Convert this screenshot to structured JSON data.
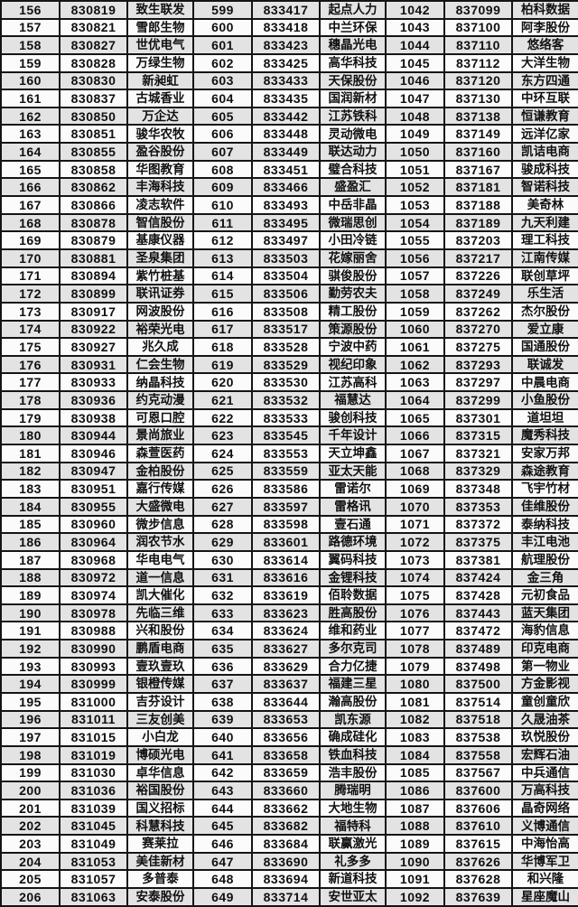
{
  "colors": {
    "row_odd": "#e3e3e3",
    "row_even": "#fbfbfb",
    "border": "#141414",
    "text": "#101010"
  },
  "table": {
    "groups": 3,
    "group_columns": [
      "rank",
      "code",
      "name"
    ],
    "rows": [
      [
        "156",
        "830819",
        "致生联发",
        "599",
        "833417",
        "起点人力",
        "1042",
        "837099",
        "柏科数据"
      ],
      [
        "157",
        "830821",
        "雪郎生物",
        "600",
        "833418",
        "中兰环保",
        "1043",
        "837100",
        "阿李股份"
      ],
      [
        "158",
        "830827",
        "世优电气",
        "601",
        "833423",
        "穗晶光电",
        "1044",
        "837110",
        "悠络客"
      ],
      [
        "159",
        "830828",
        "万绿生物",
        "602",
        "833425",
        "高华科技",
        "1045",
        "837112",
        "大洋生物"
      ],
      [
        "160",
        "830830",
        "新昶虹",
        "603",
        "833433",
        "天保股份",
        "1046",
        "837120",
        "东方四通"
      ],
      [
        "161",
        "830837",
        "古城香业",
        "604",
        "833435",
        "国润新材",
        "1047",
        "837130",
        "中环互联"
      ],
      [
        "162",
        "830850",
        "万企达",
        "605",
        "833442",
        "江苏铁科",
        "1048",
        "837138",
        "恒谦教育"
      ],
      [
        "163",
        "830851",
        "骏华农牧",
        "606",
        "833448",
        "灵动微电",
        "1049",
        "837149",
        "远洋亿家"
      ],
      [
        "164",
        "830855",
        "盈谷股份",
        "607",
        "833449",
        "联达动力",
        "1050",
        "837160",
        "凯诘电商"
      ],
      [
        "165",
        "830858",
        "华图教育",
        "608",
        "833451",
        "璧合科技",
        "1051",
        "837167",
        "骏成科技"
      ],
      [
        "166",
        "830862",
        "丰海科技",
        "609",
        "833466",
        "盛盈汇",
        "1052",
        "837181",
        "智诺科技"
      ],
      [
        "167",
        "830866",
        "凌志软件",
        "610",
        "833493",
        "中岳非晶",
        "1053",
        "837188",
        "美奇林"
      ],
      [
        "168",
        "830878",
        "智信股份",
        "611",
        "833495",
        "微瑞思创",
        "1054",
        "837189",
        "九天利建"
      ],
      [
        "169",
        "830879",
        "基康仪器",
        "612",
        "833497",
        "小田冷链",
        "1055",
        "837203",
        "理工科技"
      ],
      [
        "170",
        "830881",
        "圣泉集团",
        "613",
        "833503",
        "花嫁丽舍",
        "1056",
        "837217",
        "江南传媒"
      ],
      [
        "171",
        "830894",
        "紫竹桩基",
        "614",
        "833504",
        "骐俊股份",
        "1057",
        "837226",
        "联创草坪"
      ],
      [
        "172",
        "830899",
        "联讯证券",
        "615",
        "833506",
        "勤劳农夫",
        "1058",
        "837249",
        "乐生活"
      ],
      [
        "173",
        "830917",
        "网波股份",
        "616",
        "833508",
        "精工股份",
        "1059",
        "837262",
        "杰尔股份"
      ],
      [
        "174",
        "830922",
        "裕荣光电",
        "617",
        "833517",
        "策源股份",
        "1060",
        "837270",
        "爱立康"
      ],
      [
        "175",
        "830927",
        "兆久成",
        "618",
        "833528",
        "宁波中药",
        "1061",
        "837275",
        "国通股份"
      ],
      [
        "176",
        "830931",
        "仁会生物",
        "619",
        "833529",
        "视纪印象",
        "1062",
        "837293",
        "联诚发"
      ],
      [
        "177",
        "830933",
        "纳晶科技",
        "620",
        "833530",
        "江苏高科",
        "1063",
        "837297",
        "中晨电商"
      ],
      [
        "178",
        "830936",
        "约克动漫",
        "621",
        "833532",
        "福慧达",
        "1064",
        "837299",
        "小鱼股份"
      ],
      [
        "179",
        "830938",
        "可恩口腔",
        "622",
        "833533",
        "骏创科技",
        "1065",
        "837301",
        "道坦坦"
      ],
      [
        "180",
        "830944",
        "景尚旅业",
        "623",
        "833545",
        "千年设计",
        "1066",
        "837315",
        "魔秀科技"
      ],
      [
        "181",
        "830946",
        "森萱医药",
        "624",
        "833553",
        "天立坤鑫",
        "1067",
        "837321",
        "安家万邦"
      ],
      [
        "182",
        "830947",
        "金柏股份",
        "625",
        "833559",
        "亚太天能",
        "1068",
        "837329",
        "森途教育"
      ],
      [
        "183",
        "830951",
        "嘉行传媒",
        "626",
        "833586",
        "雷诺尔",
        "1069",
        "837348",
        "飞宇竹材"
      ],
      [
        "184",
        "830955",
        "大盛微电",
        "627",
        "833597",
        "雷格讯",
        "1070",
        "837353",
        "佳维股份"
      ],
      [
        "185",
        "830960",
        "微步信息",
        "628",
        "833598",
        "壹石通",
        "1071",
        "837372",
        "泰纳科技"
      ],
      [
        "186",
        "830964",
        "润农节水",
        "629",
        "833601",
        "路德环境",
        "1072",
        "837375",
        "丰江电池"
      ],
      [
        "187",
        "830968",
        "华电电气",
        "630",
        "833614",
        "翼码科技",
        "1073",
        "837381",
        "航理股份"
      ],
      [
        "188",
        "830972",
        "道一信息",
        "631",
        "833616",
        "金锂科技",
        "1074",
        "837424",
        "金三角"
      ],
      [
        "189",
        "830974",
        "凯大催化",
        "632",
        "833619",
        "佰聆数据",
        "1075",
        "837428",
        "元初食品"
      ],
      [
        "190",
        "830978",
        "先临三维",
        "633",
        "833623",
        "胜高股份",
        "1076",
        "837443",
        "蓝天集团"
      ],
      [
        "191",
        "830988",
        "兴和股份",
        "634",
        "833624",
        "维和药业",
        "1077",
        "837472",
        "海豹信息"
      ],
      [
        "192",
        "830990",
        "鹏盾电商",
        "635",
        "833627",
        "多尔克司",
        "1078",
        "837489",
        "印克电商"
      ],
      [
        "193",
        "830993",
        "壹玖壹玖",
        "636",
        "833629",
        "合力亿捷",
        "1079",
        "837498",
        "第一物业"
      ],
      [
        "194",
        "830999",
        "银橙传媒",
        "637",
        "833637",
        "福建三星",
        "1080",
        "837500",
        "方金影视"
      ],
      [
        "195",
        "831000",
        "吉芬设计",
        "638",
        "833644",
        "瀚高股份",
        "1081",
        "837514",
        "童创童欣"
      ],
      [
        "196",
        "831011",
        "三友创美",
        "639",
        "833653",
        "凯东源",
        "1082",
        "837518",
        "久晟油茶"
      ],
      [
        "197",
        "831015",
        "小白龙",
        "640",
        "833656",
        "确成硅化",
        "1083",
        "837538",
        "玖悦股份"
      ],
      [
        "198",
        "831019",
        "博硕光电",
        "641",
        "833658",
        "铁血科技",
        "1084",
        "837558",
        "宏辉石油"
      ],
      [
        "199",
        "831030",
        "卓华信息",
        "642",
        "833659",
        "浩丰股份",
        "1085",
        "837567",
        "中兵通信"
      ],
      [
        "200",
        "831036",
        "裕国股份",
        "643",
        "833660",
        "腾瑞明",
        "1086",
        "837600",
        "万高科技"
      ],
      [
        "201",
        "831039",
        "国义招标",
        "644",
        "833662",
        "大地生物",
        "1087",
        "837606",
        "晶奇网络"
      ],
      [
        "202",
        "831045",
        "科慧科技",
        "645",
        "833682",
        "福特科",
        "1088",
        "837610",
        "义博通信"
      ],
      [
        "203",
        "831049",
        "赛莱拉",
        "646",
        "833684",
        "联赢激光",
        "1089",
        "837615",
        "中海怡高"
      ],
      [
        "204",
        "831053",
        "美佳新材",
        "647",
        "833690",
        "礼多多",
        "1090",
        "837626",
        "华博军卫"
      ],
      [
        "205",
        "831057",
        "多普泰",
        "648",
        "833694",
        "新道科技",
        "1091",
        "837628",
        "和兴隆"
      ],
      [
        "206",
        "831063",
        "安泰股份",
        "649",
        "833714",
        "安世亚太",
        "1092",
        "837639",
        "星座魔山"
      ]
    ]
  }
}
